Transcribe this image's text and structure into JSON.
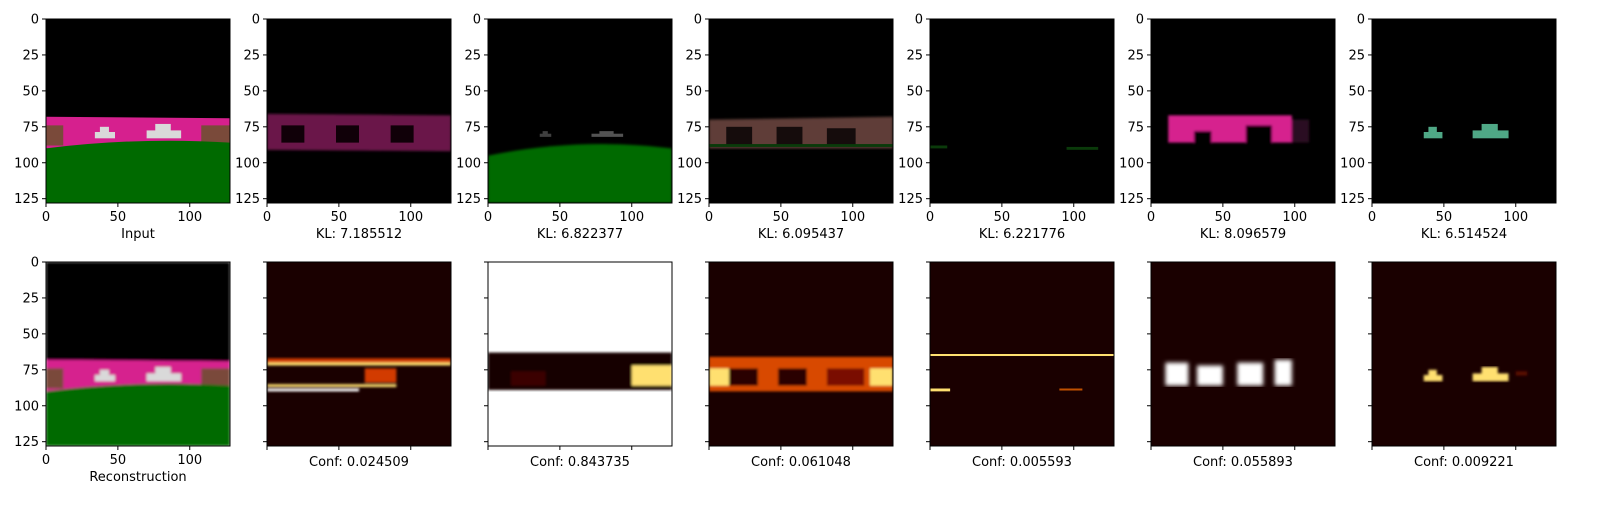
{
  "figure": {
    "axis_tick_labels": [
      "0",
      "25",
      "50",
      "75",
      "100",
      "125"
    ],
    "x_tick_labels": [
      "0",
      "50",
      "100"
    ]
  },
  "chart_data": {
    "type": "image-grid",
    "rows": 2,
    "cols": 7,
    "image_size": [
      128,
      128
    ],
    "xlim": [
      0,
      128
    ],
    "ylim": [
      128,
      0
    ],
    "x_ticks": [
      0,
      50,
      100
    ],
    "y_ticks": [
      0,
      25,
      50,
      75,
      100,
      125
    ],
    "colors": {
      "sky": "#000000",
      "magenta_wall": "#d6208e",
      "grass": "#006a00",
      "brown_wall": "#7a4a3a",
      "car": "#d9d9d9",
      "heat_dark": "#1a0000",
      "heat_mid": "#d23a00",
      "heat_hot": "#ffe070",
      "heat_white": "#ffffff"
    },
    "panels": [
      {
        "row": 0,
        "col": 0,
        "kind": "rgb-scene",
        "label": "Input",
        "show_axes": true
      },
      {
        "row": 0,
        "col": 1,
        "kind": "rgb-component",
        "component": "magenta-wall-dim",
        "label": "KL: 7.185512",
        "kl": 7.185512,
        "show_axes": true
      },
      {
        "row": 0,
        "col": 2,
        "kind": "rgb-component",
        "component": "grass",
        "label": "KL: 6.822377",
        "kl": 6.822377,
        "show_axes": true
      },
      {
        "row": 0,
        "col": 3,
        "kind": "rgb-component",
        "component": "brown-wall",
        "label": "KL: 6.095437",
        "kl": 6.095437,
        "show_axes": true
      },
      {
        "row": 0,
        "col": 4,
        "kind": "rgb-component",
        "component": "faint",
        "label": "KL: 6.221776",
        "kl": 6.221776,
        "show_axes": true
      },
      {
        "row": 0,
        "col": 5,
        "kind": "rgb-component",
        "component": "magenta-wall",
        "label": "KL: 8.096579",
        "kl": 8.096579,
        "show_axes": true
      },
      {
        "row": 0,
        "col": 6,
        "kind": "rgb-component",
        "component": "cars",
        "label": "KL: 6.514524",
        "kl": 6.514524,
        "show_axes": true
      },
      {
        "row": 1,
        "col": 0,
        "kind": "rgb-scene-blurred",
        "label": "Reconstruction",
        "show_axes": true
      },
      {
        "row": 1,
        "col": 1,
        "kind": "heatmap",
        "component": "wall-edges",
        "label": "Conf: 0.024509",
        "conf": 0.024509,
        "show_axes": false
      },
      {
        "row": 1,
        "col": 2,
        "kind": "heatmap",
        "component": "bright-background",
        "label": "Conf: 0.843735",
        "conf": 0.843735,
        "show_axes": false
      },
      {
        "row": 1,
        "col": 3,
        "kind": "heatmap",
        "component": "wall-full",
        "label": "Conf: 0.061048",
        "conf": 0.061048,
        "show_axes": false
      },
      {
        "row": 1,
        "col": 4,
        "kind": "heatmap",
        "component": "thin-line",
        "label": "Conf: 0.005593",
        "conf": 0.005593,
        "show_axes": false
      },
      {
        "row": 1,
        "col": 5,
        "kind": "heatmap",
        "component": "wall-blocks",
        "label": "Conf: 0.055893",
        "conf": 0.055893,
        "show_axes": false
      },
      {
        "row": 1,
        "col": 6,
        "kind": "heatmap",
        "component": "cars",
        "label": "Conf: 0.009221",
        "conf": 0.009221,
        "show_axes": false
      }
    ]
  }
}
